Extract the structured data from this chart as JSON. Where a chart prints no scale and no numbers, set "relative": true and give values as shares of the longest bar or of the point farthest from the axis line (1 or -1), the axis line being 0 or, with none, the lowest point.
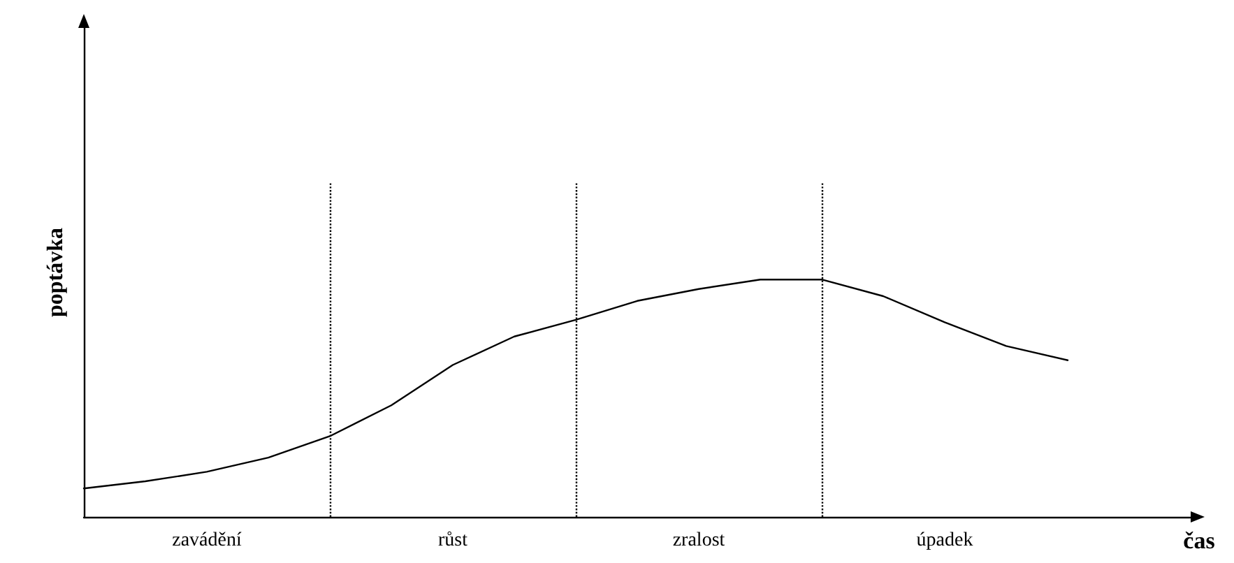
{
  "chart_data": {
    "type": "line",
    "relative": true,
    "xlabel": "čas",
    "ylabel": "poptávka",
    "categories": [
      null,
      null,
      "zavádění",
      null,
      null,
      null,
      "růst",
      null,
      null,
      null,
      "zralost",
      null,
      null,
      null,
      "úpadek",
      null,
      null,
      null,
      null
    ],
    "marker": "none",
    "line_style": "solid",
    "grid": "x",
    "series": [
      {
        "color": "#000000",
        "values": [
          0.12,
          0.15,
          0.19,
          0.25,
          0.34,
          0.47,
          0.64,
          0.76,
          0.83,
          0.91,
          0.96,
          1,
          1,
          0.93,
          0.82,
          0.72,
          0.66,
          null,
          null
        ]
      }
    ]
  }
}
